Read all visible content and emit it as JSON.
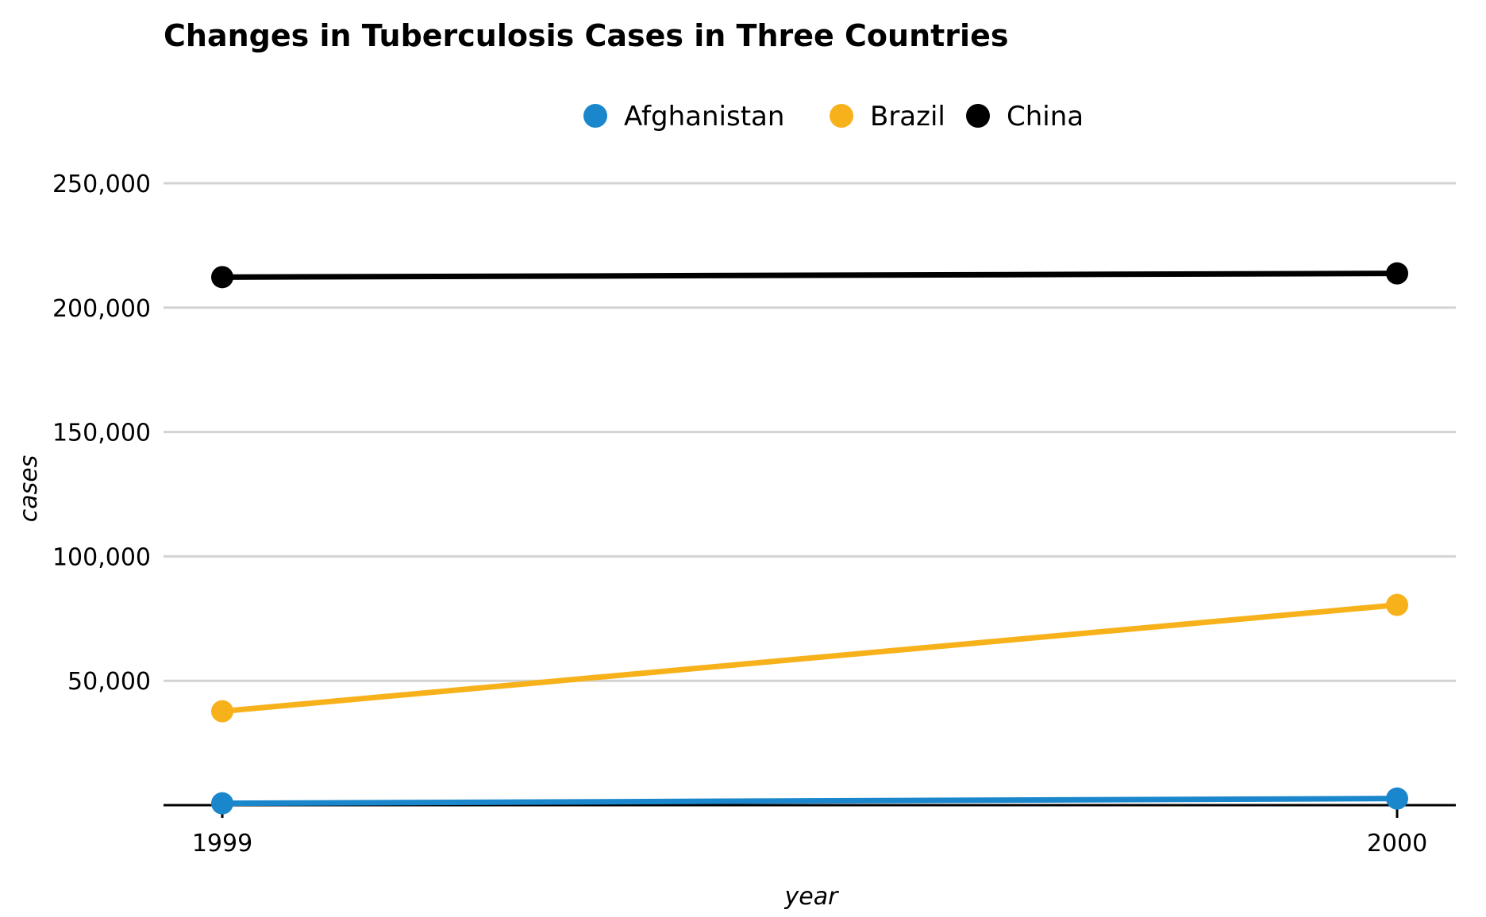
{
  "chart_data": {
    "type": "line",
    "title": "Changes in Tuberculosis Cases in Three Countries",
    "xlabel": "year",
    "ylabel": "cases",
    "x": [
      1999,
      2000
    ],
    "x_tick_labels": [
      "1999",
      "2000"
    ],
    "ylim": [
      0,
      250000
    ],
    "y_ticks": [
      50000,
      100000,
      150000,
      200000,
      250000
    ],
    "y_tick_labels": [
      "50,000",
      "100,000",
      "150,000",
      "200,000",
      "250,000"
    ],
    "grid": "horizontal",
    "legend_position": "top",
    "series": [
      {
        "name": "Afghanistan",
        "color": "#1a87cc",
        "values": [
          745,
          2666
        ]
      },
      {
        "name": "Brazil",
        "color": "#f7b21b",
        "values": [
          37737,
          80488
        ]
      },
      {
        "name": "China",
        "color": "#000000",
        "values": [
          212258,
          213766
        ]
      }
    ]
  }
}
